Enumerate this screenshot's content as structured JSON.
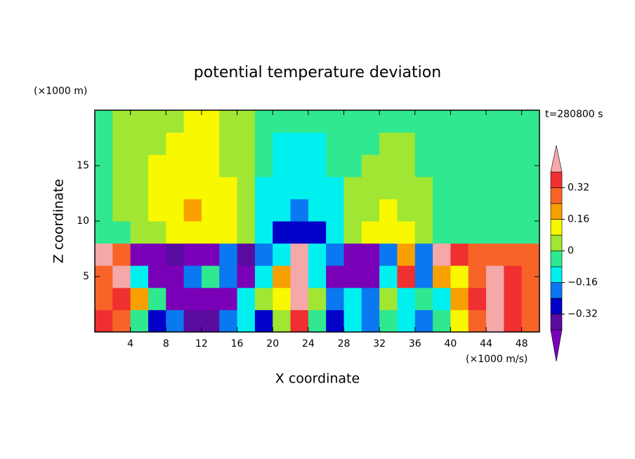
{
  "chart_data": {
    "type": "contour",
    "title": "potential temperature deviation",
    "y_unit_label": "(×1000 m)",
    "x_unit_label": "(×1000 m/s)",
    "time_label": "t=280800 s",
    "xlabel": "X coordinate",
    "ylabel": "Z coordinate",
    "xlim": [
      0,
      50
    ],
    "ylim": [
      0,
      20
    ],
    "xticks": [
      4,
      8,
      12,
      16,
      20,
      24,
      28,
      32,
      36,
      40,
      44,
      48
    ],
    "yticks": [
      5,
      10,
      15
    ],
    "x": [
      1,
      3,
      5,
      7,
      9,
      11,
      13,
      15,
      17,
      19,
      21,
      23,
      25,
      27,
      29,
      31,
      33,
      35,
      37,
      39,
      41,
      43,
      45,
      47,
      49
    ],
    "y": [
      1,
      3,
      5,
      7,
      9,
      11,
      13,
      15,
      17,
      19
    ],
    "z": [
      [
        0.36,
        0.28,
        -0.04,
        -0.28,
        -0.2,
        -0.36,
        -0.36,
        -0.2,
        -0.12,
        -0.28,
        0.04,
        0.36,
        -0.04,
        -0.28,
        -0.12,
        -0.2,
        -0.04,
        -0.12,
        -0.2,
        -0.04,
        0.12,
        0.28,
        0.44,
        0.36,
        0.28
      ],
      [
        0.28,
        0.36,
        0.2,
        -0.04,
        -0.44,
        -0.44,
        -0.44,
        -0.44,
        -0.12,
        0.04,
        0.12,
        0.44,
        0.04,
        -0.2,
        -0.12,
        -0.2,
        0.04,
        -0.12,
        -0.04,
        -0.12,
        0.2,
        0.36,
        0.44,
        0.36,
        0.28
      ],
      [
        0.28,
        0.44,
        -0.12,
        -0.44,
        -0.44,
        -0.2,
        -0.04,
        -0.2,
        -0.44,
        -0.12,
        0.2,
        0.44,
        -0.12,
        -0.44,
        -0.44,
        -0.44,
        -0.12,
        0.36,
        -0.2,
        0.2,
        0.12,
        0.28,
        0.44,
        0.36,
        0.28
      ],
      [
        0.44,
        0.28,
        -0.44,
        -0.44,
        -0.36,
        -0.44,
        -0.44,
        -0.2,
        -0.36,
        -0.2,
        -0.12,
        0.44,
        -0.12,
        -0.2,
        -0.44,
        -0.44,
        -0.2,
        0.2,
        -0.2,
        0.44,
        0.36,
        0.28,
        0.28,
        0.28,
        0.28
      ],
      [
        -0.04,
        -0.04,
        0.04,
        0.04,
        0.12,
        0.12,
        0.12,
        0.12,
        0.04,
        -0.12,
        -0.28,
        -0.28,
        -0.28,
        -0.12,
        0.04,
        0.12,
        0.12,
        0.12,
        0.04,
        -0.04,
        -0.04,
        -0.04,
        -0.04,
        -0.04,
        -0.04
      ],
      [
        -0.04,
        0.04,
        0.04,
        0.12,
        0.12,
        0.2,
        0.12,
        0.12,
        0.04,
        -0.12,
        -0.12,
        -0.2,
        -0.12,
        -0.12,
        0.04,
        0.04,
        0.12,
        0.04,
        0.04,
        -0.04,
        -0.04,
        -0.04,
        -0.04,
        -0.04,
        -0.04
      ],
      [
        -0.04,
        0.04,
        0.04,
        0.12,
        0.12,
        0.12,
        0.12,
        0.12,
        0.04,
        -0.12,
        -0.12,
        -0.12,
        -0.12,
        -0.12,
        0.04,
        0.04,
        0.04,
        0.04,
        0.04,
        -0.04,
        -0.04,
        -0.04,
        -0.04,
        -0.04,
        -0.04
      ],
      [
        -0.04,
        0.04,
        0.04,
        0.12,
        0.12,
        0.12,
        0.12,
        0.04,
        0.04,
        -0.04,
        -0.12,
        -0.12,
        -0.12,
        -0.04,
        -0.04,
        0.04,
        0.04,
        0.04,
        -0.04,
        -0.04,
        -0.04,
        -0.04,
        -0.04,
        -0.04,
        -0.04
      ],
      [
        -0.04,
        0.04,
        0.04,
        0.04,
        0.12,
        0.12,
        0.12,
        0.04,
        0.04,
        -0.04,
        -0.12,
        -0.12,
        -0.12,
        -0.04,
        -0.04,
        -0.04,
        0.04,
        0.04,
        -0.04,
        -0.04,
        -0.04,
        -0.04,
        -0.04,
        -0.04,
        -0.04
      ],
      [
        -0.04,
        0.04,
        0.04,
        0.04,
        0.04,
        0.12,
        0.12,
        0.04,
        0.04,
        -0.04,
        -0.04,
        -0.04,
        -0.04,
        -0.04,
        -0.04,
        -0.04,
        -0.04,
        -0.04,
        -0.04,
        -0.04,
        -0.04,
        -0.04,
        -0.04,
        -0.04,
        -0.04
      ]
    ],
    "levels": [
      -0.4,
      -0.32,
      -0.24,
      -0.16,
      -0.08,
      0,
      0.08,
      0.16,
      0.24,
      0.32,
      0.4
    ],
    "colors": [
      "#7a00b8",
      "#5a0ca0",
      "#0000c8",
      "#0a78f0",
      "#00f0f0",
      "#30e890",
      "#a0e632",
      "#f8f800",
      "#f8a000",
      "#f86428",
      "#f03030",
      "#f4a8a8"
    ],
    "colorbar_ticks": [
      {
        "value": 0.32,
        "label": "0.32"
      },
      {
        "value": 0.16,
        "label": "0.16"
      },
      0,
      {
        "value": -0.16,
        "label": "−0.16"
      },
      {
        "value": -0.32,
        "label": "−0.32"
      }
    ]
  }
}
